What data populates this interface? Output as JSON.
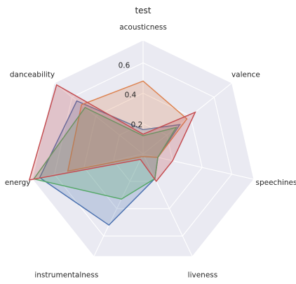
{
  "chart_data": {
    "type": "radar",
    "title": "test",
    "axes": [
      "acousticness",
      "valence",
      "speechiness",
      "liveness",
      "instrumentalness",
      "energy",
      "danceability"
    ],
    "radial_ticks": [
      0.2,
      0.4,
      0.6
    ],
    "rmax": 0.75,
    "grid": true,
    "series": [
      {
        "color": "#4c72b0",
        "values": [
          0.16,
          0.31,
          0.1,
          0.18,
          0.52,
          0.7,
          0.56
        ]
      },
      {
        "color": "#dd8452",
        "values": [
          0.48,
          0.37,
          0.1,
          0.02,
          0.02,
          0.51,
          0.52
        ]
      },
      {
        "color": "#55a868",
        "values": [
          0.12,
          0.28,
          0.1,
          0.18,
          0.33,
          0.74,
          0.49
        ]
      },
      {
        "color": "#c44e52",
        "values": [
          0.13,
          0.44,
          0.2,
          0.2,
          0.04,
          0.77,
          0.73
        ]
      }
    ]
  }
}
